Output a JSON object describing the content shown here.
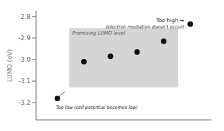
{
  "chart_data": {
    "type": "scatter",
    "categories": [
      null,
      null,
      null,
      null,
      null,
      null
    ],
    "values": [
      -3.18,
      -3.01,
      -2.985,
      -2.965,
      -2.915,
      -2.835
    ],
    "color": "#111111",
    "ylabel": "LUMO (eV)",
    "ylim": [
      -3.28,
      -2.775
    ],
    "yticks": [
      -3.2,
      -3.1,
      {
        "value": -3.0,
        "label": "-3.0"
      },
      -2.9,
      -2.8
    ],
    "tick_labels": "y",
    "grid": false,
    "promising_region": {
      "label": "Promising LUMO level",
      "ylim": [
        -3.13,
        -2.855
      ],
      "color": "#d5d5d5"
    },
    "too_high": [
      "Too high →",
      "(electron mediation doesn’t occur)"
    ],
    "too_low": "Too low (cell potential becomes low)"
  }
}
